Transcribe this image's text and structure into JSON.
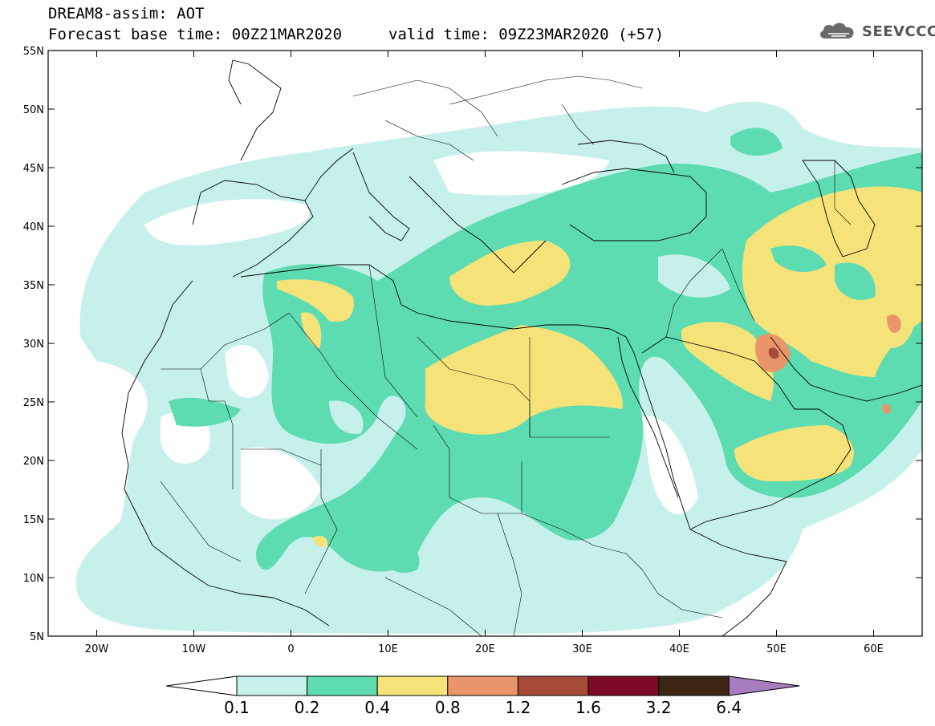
{
  "header": {
    "line1": "DREAM8-assim: AOT",
    "line2": "Forecast base time: 00Z21MAR2020",
    "line3": "valid time: 09Z23MAR2020 (+57)"
  },
  "logo": {
    "text": "SEEVCCC",
    "icon": "cloud-icon"
  },
  "axes": {
    "lat_labels": [
      "55N",
      "50N",
      "45N",
      "40N",
      "35N",
      "30N",
      "25N",
      "20N",
      "15N",
      "10N",
      "5N"
    ],
    "lon_labels": [
      "20W",
      "10W",
      "0",
      "10E",
      "20E",
      "30E",
      "40E",
      "50E",
      "60E"
    ],
    "lon_range": [
      -25,
      65
    ],
    "lat_range": [
      5,
      55
    ]
  },
  "colorbar": {
    "labels": [
      "0.1",
      "0.2",
      "0.4",
      "0.8",
      "1.2",
      "1.6",
      "3.2",
      "6.4"
    ],
    "colors": [
      "#ffffff",
      "#c6f1ea",
      "#5ddcb2",
      "#f5e37a",
      "#ea9469",
      "#a54a37",
      "#7e0b26",
      "#3c2613",
      "#a77dc0"
    ]
  },
  "colors": {
    "level1": "#c6f1ea",
    "level2": "#5ddcb2",
    "level3": "#f5e37a",
    "level4": "#ea9469",
    "level5": "#a54a37"
  }
}
